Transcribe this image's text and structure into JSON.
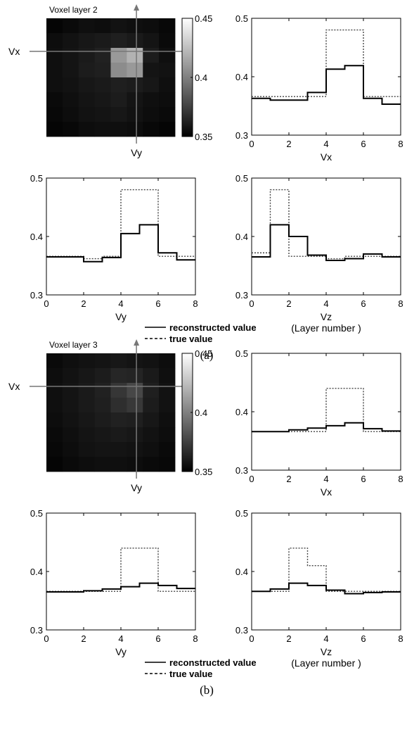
{
  "colors": {
    "solid": "#000000",
    "dotted": "#444444",
    "frame": "#000000",
    "arrow": "#777777"
  },
  "legend": {
    "solid_label": "reconstructed value",
    "dotted_label": "true value"
  },
  "panels": [
    {
      "caption": "(a)",
      "image": {
        "title": "Voxel layer 2",
        "xaxis_label": "Vx",
        "yaxis_label": "Vy",
        "colorbar_ticks": [
          "0.45",
          "0.4",
          "0.35"
        ],
        "clim": [
          0.35,
          0.45
        ],
        "grid": [
          [
            0.352,
            0.354,
            0.356,
            0.355,
            0.357,
            0.356,
            0.355,
            0.353
          ],
          [
            0.355,
            0.357,
            0.359,
            0.36,
            0.362,
            0.36,
            0.358,
            0.354
          ],
          [
            0.356,
            0.358,
            0.36,
            0.363,
            0.41,
            0.42,
            0.361,
            0.356
          ],
          [
            0.356,
            0.358,
            0.361,
            0.362,
            0.405,
            0.41,
            0.358,
            0.357
          ],
          [
            0.356,
            0.357,
            0.359,
            0.36,
            0.362,
            0.361,
            0.359,
            0.356
          ],
          [
            0.354,
            0.356,
            0.358,
            0.359,
            0.361,
            0.358,
            0.356,
            0.355
          ],
          [
            0.353,
            0.355,
            0.357,
            0.358,
            0.359,
            0.357,
            0.355,
            0.354
          ],
          [
            0.352,
            0.353,
            0.355,
            0.356,
            0.356,
            0.355,
            0.353,
            0.352
          ]
        ]
      },
      "plots": [
        {
          "xlabel": "Vx",
          "xlabel2": "",
          "xlim": [
            0,
            8
          ],
          "ylim": [
            0.3,
            0.5
          ],
          "xticks": [
            "0",
            "2",
            "4",
            "6",
            "8"
          ],
          "yticks": [
            "0.3",
            "0.4",
            "0.5"
          ],
          "reconstructed": [
            0.363,
            0.36,
            0.36,
            0.373,
            0.413,
            0.419,
            0.363,
            0.353
          ],
          "true": [
            0.366,
            0.366,
            0.366,
            0.366,
            0.48,
            0.48,
            0.366,
            0.366
          ]
        },
        {
          "xlabel": "Vy",
          "xlabel2": "",
          "xlim": [
            0,
            8
          ],
          "ylim": [
            0.3,
            0.5
          ],
          "xticks": [
            "0",
            "2",
            "4",
            "6",
            "8"
          ],
          "yticks": [
            "0.3",
            "0.4",
            "0.5"
          ],
          "reconstructed": [
            0.365,
            0.365,
            0.357,
            0.364,
            0.405,
            0.42,
            0.372,
            0.36
          ],
          "true": [
            0.366,
            0.366,
            0.362,
            0.366,
            0.48,
            0.48,
            0.366,
            0.366
          ]
        },
        {
          "xlabel": "Vz",
          "xlabel2": "(Layer number )",
          "xlim": [
            0,
            8
          ],
          "ylim": [
            0.3,
            0.5
          ],
          "xticks": [
            "0",
            "2",
            "4",
            "6",
            "8"
          ],
          "yticks": [
            "0.3",
            "0.4",
            "0.5"
          ],
          "reconstructed": [
            0.365,
            0.42,
            0.4,
            0.368,
            0.359,
            0.362,
            0.37,
            0.365
          ],
          "true": [
            0.372,
            0.48,
            0.366,
            0.366,
            0.362,
            0.366,
            0.366,
            0.366
          ]
        }
      ]
    },
    {
      "caption": "(b)",
      "image": {
        "title": "Voxel layer 3",
        "xaxis_label": "Vx",
        "yaxis_label": "Vy",
        "colorbar_ticks": [
          "0.45",
          "0.4",
          "0.35"
        ],
        "clim": [
          0.35,
          0.45
        ],
        "grid": [
          [
            0.354,
            0.356,
            0.357,
            0.358,
            0.359,
            0.358,
            0.357,
            0.355
          ],
          [
            0.355,
            0.357,
            0.359,
            0.361,
            0.365,
            0.364,
            0.36,
            0.356
          ],
          [
            0.356,
            0.358,
            0.36,
            0.363,
            0.371,
            0.378,
            0.362,
            0.357
          ],
          [
            0.356,
            0.358,
            0.36,
            0.362,
            0.368,
            0.372,
            0.361,
            0.357
          ],
          [
            0.355,
            0.357,
            0.359,
            0.361,
            0.363,
            0.362,
            0.359,
            0.356
          ],
          [
            0.354,
            0.356,
            0.358,
            0.359,
            0.36,
            0.359,
            0.357,
            0.355
          ],
          [
            0.353,
            0.355,
            0.357,
            0.358,
            0.358,
            0.357,
            0.356,
            0.354
          ],
          [
            0.352,
            0.354,
            0.355,
            0.356,
            0.356,
            0.355,
            0.354,
            0.353
          ]
        ]
      },
      "plots": [
        {
          "xlabel": "Vx",
          "xlabel2": "",
          "xlim": [
            0,
            8
          ],
          "ylim": [
            0.3,
            0.5
          ],
          "xticks": [
            "0",
            "2",
            "4",
            "6",
            "8"
          ],
          "yticks": [
            "0.3",
            "0.4",
            "0.5"
          ],
          "reconstructed": [
            0.366,
            0.366,
            0.369,
            0.372,
            0.376,
            0.381,
            0.371,
            0.367
          ],
          "true": [
            0.366,
            0.366,
            0.366,
            0.366,
            0.44,
            0.44,
            0.366,
            0.366
          ]
        },
        {
          "xlabel": "Vy",
          "xlabel2": "",
          "xlim": [
            0,
            8
          ],
          "ylim": [
            0.3,
            0.5
          ],
          "xticks": [
            "0",
            "2",
            "4",
            "6",
            "8"
          ],
          "yticks": [
            "0.3",
            "0.4",
            "0.5"
          ],
          "reconstructed": [
            0.365,
            0.365,
            0.367,
            0.37,
            0.374,
            0.38,
            0.376,
            0.371
          ],
          "true": [
            0.366,
            0.366,
            0.366,
            0.366,
            0.44,
            0.44,
            0.366,
            0.366
          ]
        },
        {
          "xlabel": "Vz",
          "xlabel2": "(Layer number )",
          "xlim": [
            0,
            8
          ],
          "ylim": [
            0.3,
            0.5
          ],
          "xticks": [
            "0",
            "2",
            "4",
            "6",
            "8"
          ],
          "yticks": [
            "0.3",
            "0.4",
            "0.5"
          ],
          "reconstructed": [
            0.366,
            0.37,
            0.38,
            0.376,
            0.368,
            0.362,
            0.364,
            0.365
          ],
          "true": [
            0.366,
            0.366,
            0.44,
            0.41,
            0.366,
            0.366,
            0.366,
            0.366
          ]
        }
      ]
    }
  ],
  "chart_data": [
    {
      "type": "heatmap",
      "title": "Voxel layer 2",
      "xlabel": "Vx",
      "ylabel": "Vy",
      "clim": [
        0.35,
        0.45
      ]
    },
    {
      "type": "line",
      "xlabel": "Vx",
      "xlim": [
        0,
        8
      ],
      "ylim": [
        0.3,
        0.5
      ],
      "series": [
        {
          "name": "reconstructed value",
          "values": [
            0.363,
            0.36,
            0.36,
            0.373,
            0.413,
            0.419,
            0.363,
            0.353
          ]
        },
        {
          "name": "true value",
          "values": [
            0.366,
            0.366,
            0.366,
            0.366,
            0.48,
            0.48,
            0.366,
            0.366
          ]
        }
      ]
    },
    {
      "type": "line",
      "xlabel": "Vy",
      "xlim": [
        0,
        8
      ],
      "ylim": [
        0.3,
        0.5
      ],
      "series": [
        {
          "name": "reconstructed value",
          "values": [
            0.365,
            0.365,
            0.357,
            0.364,
            0.405,
            0.42,
            0.372,
            0.36
          ]
        },
        {
          "name": "true value",
          "values": [
            0.366,
            0.366,
            0.362,
            0.366,
            0.48,
            0.48,
            0.366,
            0.366
          ]
        }
      ]
    },
    {
      "type": "line",
      "xlabel": "Vz (Layer number )",
      "xlim": [
        0,
        8
      ],
      "ylim": [
        0.3,
        0.5
      ],
      "series": [
        {
          "name": "reconstructed value",
          "values": [
            0.365,
            0.42,
            0.4,
            0.368,
            0.359,
            0.362,
            0.37,
            0.365
          ]
        },
        {
          "name": "true value",
          "values": [
            0.372,
            0.48,
            0.366,
            0.366,
            0.362,
            0.366,
            0.366,
            0.366
          ]
        }
      ]
    },
    {
      "type": "heatmap",
      "title": "Voxel layer 3",
      "xlabel": "Vx",
      "ylabel": "Vy",
      "clim": [
        0.35,
        0.45
      ]
    },
    {
      "type": "line",
      "xlabel": "Vx",
      "xlim": [
        0,
        8
      ],
      "ylim": [
        0.3,
        0.5
      ],
      "series": [
        {
          "name": "reconstructed value",
          "values": [
            0.366,
            0.366,
            0.369,
            0.372,
            0.376,
            0.381,
            0.371,
            0.367
          ]
        },
        {
          "name": "true value",
          "values": [
            0.366,
            0.366,
            0.366,
            0.366,
            0.44,
            0.44,
            0.366,
            0.366
          ]
        }
      ]
    },
    {
      "type": "line",
      "xlabel": "Vy",
      "xlim": [
        0,
        8
      ],
      "ylim": [
        0.3,
        0.5
      ],
      "series": [
        {
          "name": "reconstructed value",
          "values": [
            0.365,
            0.365,
            0.367,
            0.37,
            0.374,
            0.38,
            0.376,
            0.371
          ]
        },
        {
          "name": "true value",
          "values": [
            0.366,
            0.366,
            0.366,
            0.366,
            0.44,
            0.44,
            0.366,
            0.366
          ]
        }
      ]
    },
    {
      "type": "line",
      "xlabel": "Vz (Layer number )",
      "xlim": [
        0,
        8
      ],
      "ylim": [
        0.3,
        0.5
      ],
      "series": [
        {
          "name": "reconstructed value",
          "values": [
            0.366,
            0.37,
            0.38,
            0.376,
            0.368,
            0.362,
            0.364,
            0.365
          ]
        },
        {
          "name": "true value",
          "values": [
            0.366,
            0.366,
            0.44,
            0.41,
            0.366,
            0.366,
            0.366,
            0.366
          ]
        }
      ]
    }
  ]
}
